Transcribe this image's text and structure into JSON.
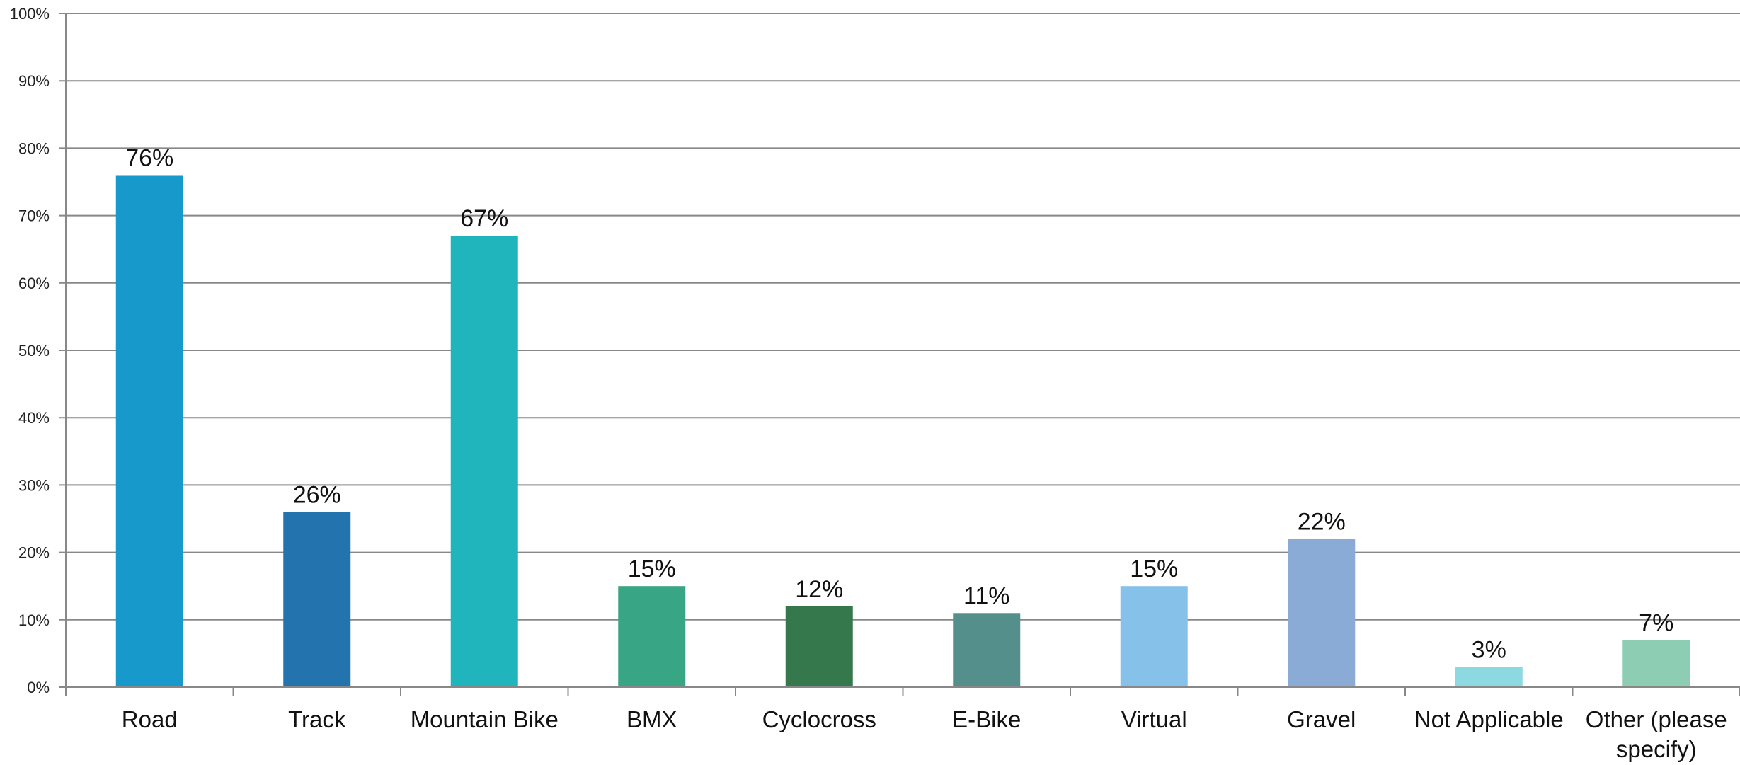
{
  "chart_data": {
    "type": "bar",
    "title": "",
    "xlabel": "",
    "ylabel": "",
    "ylim": [
      0,
      100
    ],
    "y_ticks": [
      "0%",
      "10%",
      "20%",
      "30%",
      "40%",
      "50%",
      "60%",
      "70%",
      "80%",
      "90%",
      "100%"
    ],
    "y_tick_values": [
      0,
      10,
      20,
      30,
      40,
      50,
      60,
      70,
      80,
      90,
      100
    ],
    "grid": true,
    "legend": "none",
    "categories": [
      [
        "Road"
      ],
      [
        "Track"
      ],
      [
        "Mountain Bike"
      ],
      [
        "BMX"
      ],
      [
        "Cyclocross"
      ],
      [
        "E-Bike"
      ],
      [
        "Virtual"
      ],
      [
        "Gravel"
      ],
      [
        "Not Applicable"
      ],
      [
        "Other (please",
        "specify)"
      ]
    ],
    "values": [
      76,
      26,
      67,
      15,
      12,
      11,
      15,
      22,
      3,
      7
    ],
    "data_labels": [
      "76%",
      "26%",
      "67%",
      "15%",
      "12%",
      "11%",
      "15%",
      "22%",
      "3%",
      "7%"
    ],
    "colors": [
      "#1899cb",
      "#2273ae",
      "#20b4bd",
      "#38a585",
      "#34784b",
      "#548f8b",
      "#86c1ea",
      "#8aabd6",
      "#8dd9e1",
      "#8dcdb3"
    ],
    "gridline_color": "#888888",
    "axis_color": "#888888"
  }
}
